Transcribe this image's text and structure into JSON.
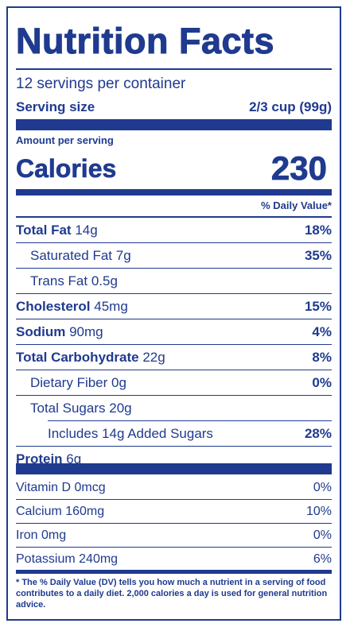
{
  "title": "Nutrition Facts",
  "servings_per_container": "12 servings per container",
  "serving_size": {
    "label": "Serving size",
    "value": "2/3 cup (99g)"
  },
  "amount_per_serving": "Amount per serving",
  "calories": {
    "label": "Calories",
    "value": "230"
  },
  "daily_value_header": "% Daily Value*",
  "nutrients": [
    {
      "name": "Total Fat",
      "amount": "14g",
      "dv": "18%"
    },
    {
      "name": "Saturated Fat",
      "amount": "7g",
      "dv": "35%"
    },
    {
      "name": "Trans Fat",
      "amount": "0.5g",
      "dv": ""
    },
    {
      "name": "Cholesterol",
      "amount": "45mg",
      "dv": "15%"
    },
    {
      "name": "Sodium",
      "amount": "90mg",
      "dv": "4%"
    },
    {
      "name": "Total Carbohydrate",
      "amount": "22g",
      "dv": "8%"
    },
    {
      "name": "Dietary Fiber",
      "amount": "0g",
      "dv": "0%"
    },
    {
      "name": "Total Sugars",
      "amount": "20g",
      "dv": ""
    },
    {
      "name": "Includes 14g Added Sugars",
      "amount": "",
      "dv": "28%"
    },
    {
      "name": "Protein",
      "amount": "6g",
      "dv": ""
    }
  ],
  "vitamins": [
    {
      "name": "Vitamin D 0mcg",
      "dv": "0%"
    },
    {
      "name": "Calcium 160mg",
      "dv": "10%"
    },
    {
      "name": "Iron 0mg",
      "dv": "0%"
    },
    {
      "name": "Potassium 240mg",
      "dv": "6%"
    }
  ],
  "footnote": "* The % Daily Value (DV) tells you how much a nutrient in a serving of food contributes to a daily diet. 2,000 calories a day is used for general nutrition advice.",
  "colors": {
    "primary": "#1f3a8f",
    "background": "#ffffff"
  }
}
